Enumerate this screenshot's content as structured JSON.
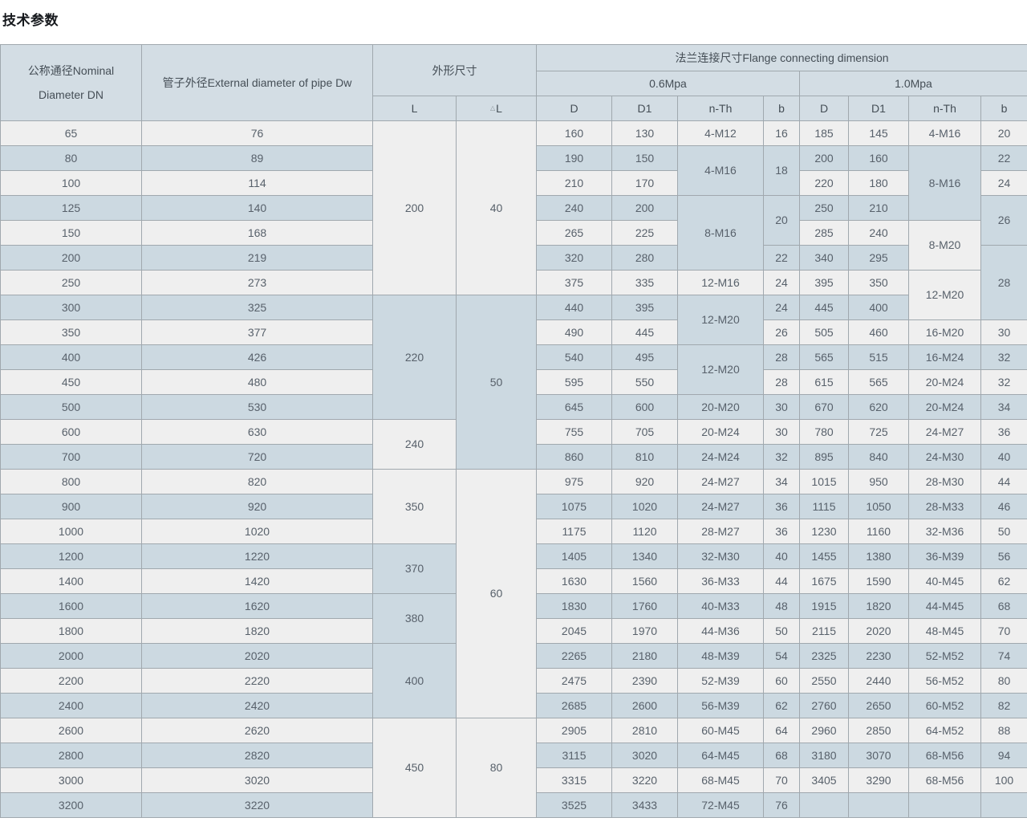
{
  "page": {
    "title": "技术参数"
  },
  "colors": {
    "header_bg": "#d3dde4",
    "row_light_bg": "#efefef",
    "row_blue_bg": "#ccd9e1",
    "border": "#a0a8ae",
    "text": "#58616b"
  },
  "table": {
    "header": {
      "dn": "公称通径Nominal Diameter DN",
      "dw": "管子外径External diameter of pipe Dw",
      "dim": "外形尺寸",
      "flange": "法兰连接尺寸Flange connecting dimension",
      "p06": "0.6Mpa",
      "p10": "1.0Mpa",
      "l": "L",
      "dl_symbol": "△",
      "dl_letter": "L",
      "d06": "D",
      "d106": "D1",
      "nth06": "n-Th",
      "b06": "b",
      "d10": "D",
      "d110": "D1",
      "nth10": "n-Th",
      "b10": "b"
    },
    "rows": [
      {
        "cells": [
          {
            "v": "65"
          },
          {
            "v": "76"
          },
          {
            "v": "200",
            "rs": 7
          },
          {
            "v": "40",
            "rs": 7
          },
          {
            "v": "160"
          },
          {
            "v": "130"
          },
          {
            "v": "4-M12"
          },
          {
            "v": "16"
          },
          {
            "v": "185"
          },
          {
            "v": "145"
          },
          {
            "v": "4-M16"
          },
          {
            "v": "20"
          }
        ]
      },
      {
        "cells": [
          {
            "v": "80"
          },
          {
            "v": "89"
          },
          {
            "v": "190"
          },
          {
            "v": "150"
          },
          {
            "v": "4-M16",
            "rs": 2
          },
          {
            "v": "18",
            "rs": 2
          },
          {
            "v": "200"
          },
          {
            "v": "160"
          },
          {
            "v": "8-M16",
            "rs": 3
          },
          {
            "v": "22"
          }
        ]
      },
      {
        "cells": [
          {
            "v": "100"
          },
          {
            "v": "114"
          },
          {
            "v": "210"
          },
          {
            "v": "170"
          },
          {
            "v": "220"
          },
          {
            "v": "180"
          },
          {
            "v": "24"
          }
        ]
      },
      {
        "cells": [
          {
            "v": "125"
          },
          {
            "v": "140"
          },
          {
            "v": "240"
          },
          {
            "v": "200"
          },
          {
            "v": "8-M16",
            "rs": 3
          },
          {
            "v": "20",
            "rs": 2
          },
          {
            "v": "250"
          },
          {
            "v": "210"
          },
          {
            "v": "26",
            "rs": 2
          }
        ]
      },
      {
        "cells": [
          {
            "v": "150"
          },
          {
            "v": "168"
          },
          {
            "v": "265"
          },
          {
            "v": "225"
          },
          {
            "v": "285"
          },
          {
            "v": "240"
          },
          {
            "v": "8-M20",
            "rs": 2
          }
        ]
      },
      {
        "cells": [
          {
            "v": "200"
          },
          {
            "v": "219"
          },
          {
            "v": "320"
          },
          {
            "v": "280"
          },
          {
            "v": "22"
          },
          {
            "v": "340"
          },
          {
            "v": "295"
          },
          {
            "v": "28",
            "rs": 3
          }
        ]
      },
      {
        "cells": [
          {
            "v": "250"
          },
          {
            "v": "273"
          },
          {
            "v": "375"
          },
          {
            "v": "335"
          },
          {
            "v": "12-M16"
          },
          {
            "v": "24"
          },
          {
            "v": "395"
          },
          {
            "v": "350"
          },
          {
            "v": "12-M20",
            "rs": 2
          }
        ]
      },
      {
        "cells": [
          {
            "v": "300"
          },
          {
            "v": "325"
          },
          {
            "v": "220",
            "rs": 5
          },
          {
            "v": "50",
            "rs": 7
          },
          {
            "v": "440"
          },
          {
            "v": "395"
          },
          {
            "v": "12-M20",
            "rs": 2
          },
          {
            "v": "24"
          },
          {
            "v": "445"
          },
          {
            "v": "400"
          }
        ]
      },
      {
        "cells": [
          {
            "v": "350"
          },
          {
            "v": "377"
          },
          {
            "v": "490"
          },
          {
            "v": "445"
          },
          {
            "v": "26"
          },
          {
            "v": "505"
          },
          {
            "v": "460"
          },
          {
            "v": "16-M20"
          },
          {
            "v": "30"
          }
        ]
      },
      {
        "cells": [
          {
            "v": "400"
          },
          {
            "v": "426"
          },
          {
            "v": "540"
          },
          {
            "v": "495"
          },
          {
            "v": "12-M20",
            "rs": 2
          },
          {
            "v": "28"
          },
          {
            "v": "565"
          },
          {
            "v": "515"
          },
          {
            "v": "16-M24"
          },
          {
            "v": "32"
          }
        ]
      },
      {
        "cells": [
          {
            "v": "450"
          },
          {
            "v": "480"
          },
          {
            "v": "595"
          },
          {
            "v": "550"
          },
          {
            "v": "28"
          },
          {
            "v": "615"
          },
          {
            "v": "565"
          },
          {
            "v": "20-M24"
          },
          {
            "v": "32"
          }
        ]
      },
      {
        "cells": [
          {
            "v": "500"
          },
          {
            "v": "530"
          },
          {
            "v": "645"
          },
          {
            "v": "600"
          },
          {
            "v": "20-M20"
          },
          {
            "v": "30"
          },
          {
            "v": "670"
          },
          {
            "v": "620"
          },
          {
            "v": "20-M24"
          },
          {
            "v": "34"
          }
        ]
      },
      {
        "cells": [
          {
            "v": "600"
          },
          {
            "v": "630"
          },
          {
            "v": "240",
            "rs": 2
          },
          {
            "v": "755"
          },
          {
            "v": "705"
          },
          {
            "v": "20-M24"
          },
          {
            "v": "30"
          },
          {
            "v": "780"
          },
          {
            "v": "725"
          },
          {
            "v": "24-M27"
          },
          {
            "v": "36"
          }
        ]
      },
      {
        "cells": [
          {
            "v": "700"
          },
          {
            "v": "720"
          },
          {
            "v": "860"
          },
          {
            "v": "810"
          },
          {
            "v": "24-M24"
          },
          {
            "v": "32"
          },
          {
            "v": "895"
          },
          {
            "v": "840"
          },
          {
            "v": "24-M30"
          },
          {
            "v": "40"
          }
        ]
      },
      {
        "cells": [
          {
            "v": "800"
          },
          {
            "v": "820"
          },
          {
            "v": "350",
            "rs": 3
          },
          {
            "v": "60",
            "rs": 10
          },
          {
            "v": "975"
          },
          {
            "v": "920"
          },
          {
            "v": "24-M27"
          },
          {
            "v": "34"
          },
          {
            "v": "1015"
          },
          {
            "v": "950"
          },
          {
            "v": "28-M30"
          },
          {
            "v": "44"
          }
        ]
      },
      {
        "cells": [
          {
            "v": "900"
          },
          {
            "v": "920"
          },
          {
            "v": "1075"
          },
          {
            "v": "1020"
          },
          {
            "v": "24-M27"
          },
          {
            "v": "36"
          },
          {
            "v": "1115"
          },
          {
            "v": "1050"
          },
          {
            "v": "28-M33"
          },
          {
            "v": "46"
          }
        ]
      },
      {
        "cells": [
          {
            "v": "1000"
          },
          {
            "v": "1020"
          },
          {
            "v": "1175"
          },
          {
            "v": "1120"
          },
          {
            "v": "28-M27"
          },
          {
            "v": "36"
          },
          {
            "v": "1230"
          },
          {
            "v": "1160"
          },
          {
            "v": "32-M36"
          },
          {
            "v": "50"
          }
        ]
      },
      {
        "cells": [
          {
            "v": "1200"
          },
          {
            "v": "1220"
          },
          {
            "v": "370",
            "rs": 2
          },
          {
            "v": "1405"
          },
          {
            "v": "1340"
          },
          {
            "v": "32-M30"
          },
          {
            "v": "40"
          },
          {
            "v": "1455"
          },
          {
            "v": "1380"
          },
          {
            "v": "36-M39"
          },
          {
            "v": "56"
          }
        ]
      },
      {
        "cells": [
          {
            "v": "1400"
          },
          {
            "v": "1420"
          },
          {
            "v": "1630"
          },
          {
            "v": "1560"
          },
          {
            "v": "36-M33"
          },
          {
            "v": "44"
          },
          {
            "v": "1675"
          },
          {
            "v": "1590"
          },
          {
            "v": "40-M45"
          },
          {
            "v": "62"
          }
        ]
      },
      {
        "cells": [
          {
            "v": "1600"
          },
          {
            "v": "1620"
          },
          {
            "v": "380",
            "rs": 2
          },
          {
            "v": "1830"
          },
          {
            "v": "1760"
          },
          {
            "v": "40-M33"
          },
          {
            "v": "48"
          },
          {
            "v": "1915"
          },
          {
            "v": "1820"
          },
          {
            "v": "44-M45"
          },
          {
            "v": "68"
          }
        ]
      },
      {
        "cells": [
          {
            "v": "1800"
          },
          {
            "v": "1820"
          },
          {
            "v": "2045"
          },
          {
            "v": "1970"
          },
          {
            "v": "44-M36"
          },
          {
            "v": "50"
          },
          {
            "v": "2115"
          },
          {
            "v": "2020"
          },
          {
            "v": "48-M45"
          },
          {
            "v": "70"
          }
        ]
      },
      {
        "cells": [
          {
            "v": "2000"
          },
          {
            "v": "2020"
          },
          {
            "v": "400",
            "rs": 3
          },
          {
            "v": "2265"
          },
          {
            "v": "2180"
          },
          {
            "v": "48-M39"
          },
          {
            "v": "54"
          },
          {
            "v": "2325"
          },
          {
            "v": "2230"
          },
          {
            "v": "52-M52"
          },
          {
            "v": "74"
          }
        ]
      },
      {
        "cells": [
          {
            "v": "2200"
          },
          {
            "v": "2220"
          },
          {
            "v": "2475"
          },
          {
            "v": "2390"
          },
          {
            "v": "52-M39"
          },
          {
            "v": "60"
          },
          {
            "v": "2550"
          },
          {
            "v": "2440"
          },
          {
            "v": "56-M52"
          },
          {
            "v": "80"
          }
        ]
      },
      {
        "cells": [
          {
            "v": "2400"
          },
          {
            "v": "2420"
          },
          {
            "v": "2685"
          },
          {
            "v": "2600"
          },
          {
            "v": "56-M39"
          },
          {
            "v": "62"
          },
          {
            "v": "2760"
          },
          {
            "v": "2650"
          },
          {
            "v": "60-M52"
          },
          {
            "v": "82"
          }
        ]
      },
      {
        "cells": [
          {
            "v": "2600"
          },
          {
            "v": "2620"
          },
          {
            "v": "450",
            "rs": 4
          },
          {
            "v": "80",
            "rs": 4
          },
          {
            "v": "2905"
          },
          {
            "v": "2810"
          },
          {
            "v": "60-M45"
          },
          {
            "v": "64"
          },
          {
            "v": "2960"
          },
          {
            "v": "2850"
          },
          {
            "v": "64-M52"
          },
          {
            "v": "88"
          }
        ]
      },
      {
        "cells": [
          {
            "v": "2800"
          },
          {
            "v": "2820"
          },
          {
            "v": "3115"
          },
          {
            "v": "3020"
          },
          {
            "v": "64-M45"
          },
          {
            "v": "68"
          },
          {
            "v": "3180"
          },
          {
            "v": "3070"
          },
          {
            "v": "68-M56"
          },
          {
            "v": "94"
          }
        ]
      },
      {
        "cells": [
          {
            "v": "3000"
          },
          {
            "v": "3020"
          },
          {
            "v": "3315"
          },
          {
            "v": "3220"
          },
          {
            "v": "68-M45"
          },
          {
            "v": "70"
          },
          {
            "v": "3405"
          },
          {
            "v": "3290"
          },
          {
            "v": "68-M56"
          },
          {
            "v": "100"
          }
        ]
      },
      {
        "cells": [
          {
            "v": "3200"
          },
          {
            "v": "3220"
          },
          {
            "v": "3525"
          },
          {
            "v": "3433"
          },
          {
            "v": "72-M45"
          },
          {
            "v": "76"
          },
          {
            "v": ""
          },
          {
            "v": ""
          },
          {
            "v": ""
          },
          {
            "v": ""
          }
        ]
      }
    ]
  }
}
